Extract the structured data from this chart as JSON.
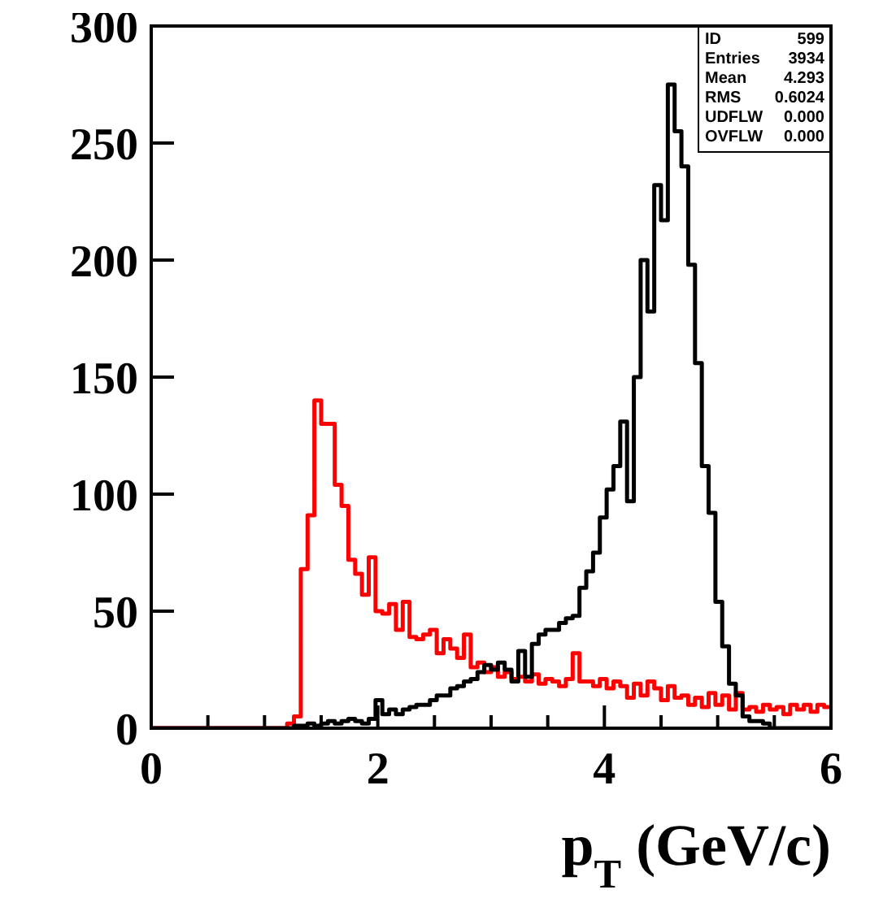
{
  "chart_data": {
    "type": "histogram",
    "xlabel": "p$_{T}$ (GeV/c)",
    "bins": [
      0,
      0.06,
      0.12,
      0.18,
      0.24,
      0.3,
      0.36,
      0.42,
      0.48,
      0.54,
      0.6,
      0.66,
      0.72,
      0.78,
      0.84,
      0.9,
      0.96,
      1.02,
      1.08,
      1.14,
      1.2,
      1.26,
      1.32,
      1.38,
      1.44,
      1.5,
      1.56,
      1.62,
      1.68,
      1.74,
      1.8,
      1.86,
      1.92,
      1.98,
      2.04,
      2.1,
      2.16,
      2.22,
      2.28,
      2.34,
      2.4,
      2.46,
      2.52,
      2.58,
      2.64,
      2.7,
      2.76,
      2.82,
      2.88,
      2.94,
      3,
      3.06,
      3.12,
      3.18,
      3.24,
      3.3,
      3.36,
      3.42,
      3.48,
      3.54,
      3.6,
      3.66,
      3.72,
      3.78,
      3.84,
      3.9,
      3.96,
      4.02,
      4.08,
      4.14,
      4.2,
      4.26,
      4.32,
      4.38,
      4.44,
      4.5,
      4.56,
      4.62,
      4.68,
      4.74,
      4.8,
      4.86,
      4.92,
      4.98,
      5.04,
      5.1,
      5.16,
      5.22,
      5.28,
      5.34,
      5.4,
      5.46,
      5.52,
      5.58,
      5.64,
      5.7,
      5.76,
      5.82,
      5.88,
      5.94,
      6
    ],
    "series": [
      {
        "color": "#ff0000",
        "values": [
          0,
          0,
          0,
          0,
          0,
          0,
          0,
          0,
          0,
          0,
          0,
          0,
          0,
          0,
          0,
          0,
          0,
          0,
          0,
          0,
          2,
          5,
          68,
          91,
          140,
          130,
          130,
          104,
          95,
          72,
          66,
          57,
          73,
          50,
          49,
          53,
          42,
          54,
          39,
          38,
          40,
          42,
          32,
          38,
          34,
          30,
          40,
          26,
          28,
          24,
          26,
          22,
          24,
          21,
          22,
          20,
          23,
          19,
          21,
          20,
          18,
          21,
          32,
          20,
          20,
          18,
          21,
          17,
          20,
          18,
          13,
          19,
          14,
          20,
          17,
          12,
          18,
          13,
          14,
          10,
          13,
          9,
          15,
          10,
          14,
          8,
          15,
          8,
          9,
          7,
          10,
          8,
          9,
          6,
          10,
          8,
          10,
          7,
          10,
          9
        ]
      },
      {
        "color": "#000000",
        "values": [
          0,
          0,
          0,
          0,
          0,
          0,
          0,
          0,
          0,
          0,
          0,
          0,
          0,
          0,
          0,
          0,
          0,
          0,
          0,
          0,
          0,
          1,
          1,
          2,
          1,
          2,
          3,
          2,
          3,
          4,
          3,
          2,
          4,
          12,
          6,
          8,
          6,
          8,
          9,
          10,
          10,
          12,
          14,
          14,
          17,
          18,
          20,
          21,
          24,
          27,
          25,
          28,
          25,
          20,
          33,
          22,
          36,
          40,
          42,
          42,
          45,
          47,
          48,
          60,
          67,
          75,
          90,
          102,
          112,
          131,
          97,
          150,
          200,
          178,
          232,
          217,
          275,
          255,
          240,
          198,
          156,
          112,
          92,
          54,
          35,
          19,
          14,
          5,
          3,
          3,
          2,
          0,
          0,
          0,
          0,
          0,
          0,
          0,
          0,
          0
        ]
      }
    ],
    "xlim": [
      0,
      6
    ],
    "xticks": [
      0,
      {
        "value": 0.5,
        "label": null
      },
      {
        "value": 1,
        "label": null
      },
      {
        "value": 1.5,
        "label": null
      },
      2,
      {
        "value": 2.5,
        "label": null
      },
      {
        "value": 3,
        "label": null
      },
      {
        "value": 3.5,
        "label": null
      },
      4,
      {
        "value": 4.5,
        "label": null
      },
      {
        "value": 5,
        "label": null
      },
      {
        "value": 5.5,
        "label": null
      },
      6
    ],
    "ylim": [
      0,
      300
    ],
    "yticks": [
      0,
      50,
      100,
      150,
      200,
      250,
      300
    ],
    "annotations": [
      "ID 599",
      "Entries 3934",
      "Mean 4.293",
      "RMS 0.6024",
      "UDFLW 0.000",
      "OVFLW 0.000"
    ]
  }
}
